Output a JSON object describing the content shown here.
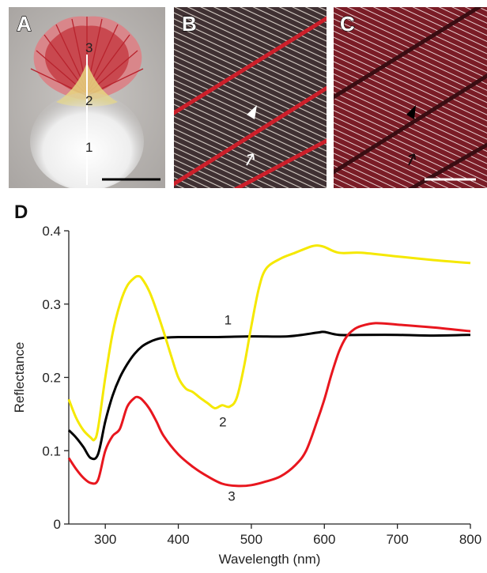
{
  "panels": {
    "a": {
      "letter": "A",
      "regions": [
        "3",
        "2",
        "1"
      ]
    },
    "b": {
      "letter": "B"
    },
    "c": {
      "letter": "C"
    },
    "d": {
      "letter": "D"
    }
  },
  "chart_data": {
    "type": "line",
    "title": "",
    "xlabel": "Wavelength (nm)",
    "ylabel": "Reflectance",
    "xlim": [
      250,
      800
    ],
    "ylim": [
      0,
      0.4
    ],
    "xticks": [
      300,
      400,
      500,
      600,
      700,
      800
    ],
    "yticks": [
      0,
      0.1,
      0.2,
      0.3,
      0.4
    ],
    "ytick_labels": [
      "0",
      "0.1",
      "0.2",
      "0.3",
      "0.4"
    ],
    "grid": false,
    "series": [
      {
        "name": "1",
        "color": "#000000",
        "x": [
          250,
          260,
          270,
          280,
          290,
          300,
          310,
          320,
          330,
          340,
          350,
          360,
          370,
          380,
          400,
          450,
          500,
          550,
          590,
          600,
          620,
          650,
          700,
          750,
          800
        ],
        "y": [
          0.128,
          0.118,
          0.105,
          0.09,
          0.095,
          0.14,
          0.175,
          0.2,
          0.218,
          0.232,
          0.242,
          0.248,
          0.252,
          0.254,
          0.255,
          0.255,
          0.256,
          0.256,
          0.261,
          0.262,
          0.258,
          0.258,
          0.258,
          0.257,
          0.258
        ]
      },
      {
        "name": "2",
        "color": "#f5e800",
        "x": [
          250,
          260,
          270,
          280,
          285,
          290,
          300,
          310,
          320,
          330,
          340,
          345,
          350,
          360,
          370,
          380,
          390,
          400,
          410,
          420,
          430,
          440,
          450,
          460,
          470,
          480,
          490,
          500,
          510,
          520,
          540,
          560,
          580,
          590,
          600,
          620,
          650,
          700,
          750,
          800
        ],
        "y": [
          0.17,
          0.145,
          0.128,
          0.118,
          0.115,
          0.13,
          0.2,
          0.26,
          0.3,
          0.325,
          0.336,
          0.338,
          0.335,
          0.318,
          0.292,
          0.262,
          0.23,
          0.2,
          0.185,
          0.18,
          0.172,
          0.165,
          0.158,
          0.162,
          0.16,
          0.172,
          0.215,
          0.27,
          0.32,
          0.348,
          0.362,
          0.37,
          0.378,
          0.38,
          0.378,
          0.37,
          0.37,
          0.365,
          0.36,
          0.356
        ]
      },
      {
        "name": "3",
        "color": "#e8161e",
        "x": [
          250,
          260,
          270,
          280,
          290,
          300,
          310,
          320,
          330,
          340,
          345,
          350,
          360,
          370,
          380,
          400,
          420,
          440,
          460,
          480,
          500,
          520,
          540,
          560,
          575,
          590,
          600,
          610,
          620,
          630,
          640,
          650,
          670,
          700,
          750,
          800
        ],
        "y": [
          0.09,
          0.075,
          0.063,
          0.056,
          0.06,
          0.1,
          0.12,
          0.13,
          0.16,
          0.172,
          0.173,
          0.17,
          0.158,
          0.14,
          0.12,
          0.095,
          0.078,
          0.065,
          0.055,
          0.052,
          0.053,
          0.058,
          0.065,
          0.08,
          0.1,
          0.14,
          0.17,
          0.205,
          0.235,
          0.255,
          0.265,
          0.27,
          0.274,
          0.272,
          0.268,
          0.263
        ]
      }
    ],
    "curve_labels": [
      {
        "text": "1",
        "x": 468,
        "y": 0.272
      },
      {
        "text": "2",
        "x": 461,
        "y": 0.133
      },
      {
        "text": "3",
        "x": 473,
        "y": 0.032
      }
    ]
  }
}
